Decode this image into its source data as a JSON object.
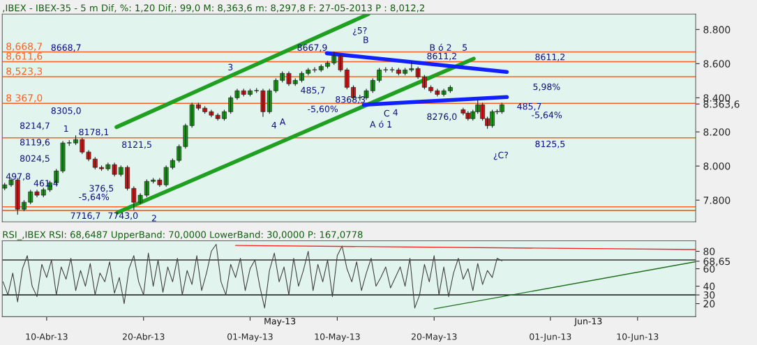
{
  "chart_data": [
    {
      "type": "candlestick",
      "title": ",IBEX - IBEX-35 - 5 m Dif, %: 1,20 Dif,: 99,0 M: 8,363,6 m: 8,297,8 F: 27-05-2013 P : 8,012,2",
      "x": [
        "2013-04-05T16:00",
        "2013-04-06T08:00",
        "2013-04-07T00:00",
        "2013-04-07T16:00",
        "2013-04-08T08:00",
        "2013-04-09T00:00",
        "2013-04-09T16:00",
        "2013-04-10T08:00",
        "2013-04-11T00:00",
        "2013-04-11T16:00",
        "2013-04-12T08:00",
        "2013-04-13T00:00",
        "2013-04-13T16:00",
        "2013-04-14T08:00",
        "2013-04-15T00:00",
        "2013-04-15T16:00",
        "2013-04-16T08:00",
        "2013-04-17T00:00",
        "2013-04-17T16:00",
        "2013-04-18T08:00",
        "2013-04-19T00:00",
        "2013-04-19T16:00",
        "2013-04-20T08:00",
        "2013-04-21T00:00",
        "2013-04-21T16:00",
        "2013-04-22T08:00",
        "2013-04-23T00:00",
        "2013-04-23T16:00",
        "2013-04-24T08:00",
        "2013-04-25T00:00",
        "2013-04-25T16:00",
        "2013-04-26T08:00",
        "2013-04-27T00:00",
        "2013-04-27T16:00",
        "2013-04-28T08:00",
        "2013-04-29T00:00",
        "2013-04-29T16:00",
        "2013-04-30T08:00",
        "2013-05-01T00:00",
        "2013-05-01T16:00",
        "2013-05-02T08:00",
        "2013-05-03T00:00",
        "2013-05-03T16:00",
        "2013-05-04T08:00",
        "2013-05-05T00:00",
        "2013-05-05T16:00",
        "2013-05-06T08:00",
        "2013-05-07T00:00",
        "2013-05-07T16:00",
        "2013-05-08T08:00",
        "2013-05-09T00:00",
        "2013-05-09T16:00",
        "2013-05-10T08:00",
        "2013-05-11T00:00",
        "2013-05-11T16:00",
        "2013-05-12T08:00",
        "2013-05-13T00:00",
        "2013-05-13T16:00",
        "2013-05-14T08:00",
        "2013-05-15T00:00",
        "2013-05-15T16:00",
        "2013-05-16T08:00",
        "2013-05-17T00:00",
        "2013-05-17T16:00",
        "2013-05-18T08:00",
        "2013-05-19T00:00",
        "2013-05-19T16:00",
        "2013-05-20T08:00",
        "2013-05-21T00:00",
        "2013-05-21T16:00",
        "2013-05-23T00:00",
        "2013-05-23T12:00",
        "2013-05-24T00:00",
        "2013-05-24T12:00",
        "2013-05-25T00:00",
        "2013-05-25T12:00",
        "2013-05-26T00:00",
        "2013-05-26T12:00",
        "2013-05-27T00:00"
      ],
      "ohlc": [
        [
          7870,
          7900,
          7860,
          7890
        ],
        [
          7890,
          7928,
          7880,
          7918
        ],
        [
          7918,
          7928,
          7717,
          7747
        ],
        [
          7747,
          7798,
          7737,
          7788
        ],
        [
          7788,
          7859,
          7778,
          7849
        ],
        [
          7849,
          7859,
          7819,
          7829
        ],
        [
          7829,
          7871,
          7819,
          7861
        ],
        [
          7861,
          7912,
          7851,
          7902
        ],
        [
          7902,
          7981,
          7892,
          7971
        ],
        [
          7971,
          8145,
          7961,
          8135
        ],
        [
          8135,
          8150,
          8120,
          8135
        ],
        [
          8135,
          8178,
          8125,
          8155
        ],
        [
          8155,
          8165,
          8072,
          8082
        ],
        [
          8082,
          8092,
          8031,
          8041
        ],
        [
          8041,
          8051,
          7982,
          7992
        ],
        [
          7992,
          8002,
          7974,
          7984
        ],
        [
          7984,
          8018,
          7974,
          8008
        ],
        [
          8008,
          8018,
          7941,
          7951
        ],
        [
          7951,
          8002,
          7941,
          7992
        ],
        [
          7992,
          8002,
          7859,
          7869
        ],
        [
          7869,
          7879,
          7743,
          7788
        ],
        [
          7788,
          7839,
          7778,
          7829
        ],
        [
          7829,
          7920,
          7819,
          7910
        ],
        [
          7910,
          7928,
          7900,
          7918
        ],
        [
          7918,
          7928,
          7880,
          7890
        ],
        [
          7890,
          8002,
          7880,
          7992
        ],
        [
          7992,
          8043,
          7982,
          8033
        ],
        [
          8033,
          8124,
          8023,
          8114
        ],
        [
          8114,
          8247,
          8104,
          8237
        ],
        [
          8237,
          8369,
          8227,
          8359
        ],
        [
          8359,
          8369,
          8329,
          8339
        ],
        [
          8339,
          8349,
          8308,
          8318
        ],
        [
          8318,
          8328,
          8288,
          8298
        ],
        [
          8298,
          8308,
          8268,
          8278
        ],
        [
          8278,
          8328,
          8268,
          8318
        ],
        [
          8318,
          8410,
          8308,
          8400
        ],
        [
          8400,
          8451,
          8390,
          8441
        ],
        [
          8441,
          8451,
          8410,
          8420
        ],
        [
          8420,
          8451,
          8410,
          8441
        ],
        [
          8441,
          8455,
          8430,
          8441
        ],
        [
          8441,
          8451,
          8290,
          8318
        ],
        [
          8318,
          8451,
          8308,
          8441
        ],
        [
          8441,
          8512,
          8431,
          8502
        ],
        [
          8502,
          8553,
          8492,
          8543
        ],
        [
          8543,
          8553,
          8472,
          8482
        ],
        [
          8482,
          8512,
          8472,
          8502
        ],
        [
          8502,
          8553,
          8492,
          8543
        ],
        [
          8543,
          8573,
          8533,
          8563
        ],
        [
          8563,
          8578,
          8550,
          8563
        ],
        [
          8563,
          8594,
          8553,
          8584
        ],
        [
          8584,
          8614,
          8574,
          8604
        ],
        [
          8604,
          8668,
          8594,
          8645
        ],
        [
          8645,
          8655,
          8553,
          8563
        ],
        [
          8563,
          8573,
          8451,
          8461
        ],
        [
          8461,
          8471,
          8390,
          8400
        ],
        [
          8400,
          8415,
          8385,
          8400
        ],
        [
          8400,
          8451,
          8390,
          8441
        ],
        [
          8441,
          8512,
          8431,
          8502
        ],
        [
          8502,
          8573,
          8492,
          8563
        ],
        [
          8563,
          8578,
          8550,
          8563
        ],
        [
          8563,
          8578,
          8550,
          8563
        ],
        [
          8563,
          8573,
          8533,
          8543
        ],
        [
          8543,
          8573,
          8533,
          8563
        ],
        [
          8563,
          8611,
          8553,
          8571
        ],
        [
          8571,
          8581,
          8512,
          8522
        ],
        [
          8522,
          8532,
          8451,
          8461
        ],
        [
          8461,
          8471,
          8431,
          8441
        ],
        [
          8441,
          8451,
          8410,
          8420
        ],
        [
          8420,
          8451,
          8410,
          8441
        ],
        [
          8441,
          8471,
          8431,
          8461
        ],
        [
          8330,
          8340,
          8300,
          8310
        ],
        [
          8310,
          8320,
          8268,
          8278
        ],
        [
          8278,
          8328,
          8268,
          8318
        ],
        [
          8318,
          8386,
          8308,
          8359
        ],
        [
          8359,
          8369,
          8268,
          8278
        ],
        [
          8278,
          8288,
          8220,
          8237
        ],
        [
          8237,
          8328,
          8227,
          8318
        ],
        [
          8318,
          8330,
          8305,
          8318
        ],
        [
          8318,
          8369,
          8308,
          8359
        ]
      ],
      "series": [
        {
          "type": "line",
          "color": "#20a020",
          "x": [
            "2013-04-17T05:00",
            "2013-05-13T05:00"
          ],
          "values": [
            8228,
            8890
          ]
        },
        {
          "type": "line",
          "color": "#20a020",
          "x": [
            "2013-04-17T07:00",
            "2013-05-24T02:00"
          ],
          "values": [
            7727,
            8629
          ]
        },
        {
          "type": "line",
          "color": "#1020ff",
          "x": [
            "2013-05-08T22:00",
            "2013-05-27T12:00"
          ],
          "values": [
            8661,
            8551
          ]
        },
        {
          "type": "line",
          "color": "#1020ff",
          "x": [
            "2013-05-12T18:00",
            "2013-05-27T12:00"
          ],
          "values": [
            8359,
            8404
          ]
        }
      ],
      "xlim": [
        "2013-04-05T10:00",
        "2013-06-16T00:00"
      ],
      "ylim": [
        7673,
        8890
      ],
      "yticks": [
        {
          "value": 8800,
          "label": "8.800"
        },
        {
          "value": 8600,
          "label": "8.600"
        },
        {
          "value": 8400,
          "label": "8.400"
        },
        {
          "value": 8200,
          "label": "8.200"
        },
        {
          "value": 8000,
          "label": "8.000"
        },
        {
          "value": 7800,
          "label": "7.800"
        },
        {
          "value": 8363.6,
          "label": "8.363,6"
        }
      ],
      "tick_labels": "y",
      "ref_lines": [
        {
          "axis": "y",
          "value": 8668.7,
          "label": "8,668,7",
          "color": "#ff6020"
        },
        {
          "axis": "y",
          "value": 8611.6,
          "label": "8,611,6",
          "color": "#ff6020"
        },
        {
          "axis": "y",
          "value": 8523.3,
          "label": "8,523,3",
          "color": "#ff6020"
        },
        {
          "axis": "y",
          "value": 8367.0,
          "label": "8 367,0",
          "color": "#ff6020"
        },
        {
          "axis": "y",
          "value": 8165,
          "color": "#ff6020"
        },
        {
          "axis": "y",
          "value": 7761,
          "color": "#ff6020"
        },
        {
          "axis": "y",
          "value": 7740,
          "color": "#ff6020"
        }
      ],
      "annotations": [
        "8668,7",
        "8305,0",
        "8214,7",
        "8119,6",
        "8024,5",
        "8178,1",
        "8121,5",
        "7743,0",
        "7716,7",
        "497,8",
        "461,4",
        "376,5",
        "-5,64%",
        "1",
        "2",
        "3",
        "4",
        "A",
        "¿5?",
        "B",
        "8667,9",
        "485,7",
        "-5,60%",
        "8368,3",
        "A ó 1",
        "C",
        "4",
        "B ó 2",
        "5",
        "8611,2",
        "8276,0",
        "485,7",
        "5,98%",
        "-5,64%",
        "8611,2",
        "8125,5",
        "¿C?"
      ]
    },
    {
      "type": "line",
      "title": "RSI_,IBEX RSI: 68,6487 UpperBand: 70,0000 LowerBand: 30,0000 P: 167,0778",
      "x": [
        "2013-04-05T12:00",
        "2013-04-06T00:00",
        "2013-04-06T12:00",
        "2013-04-07T00:00",
        "2013-04-07T12:00",
        "2013-04-08T00:00",
        "2013-04-08T12:00",
        "2013-04-09T00:00",
        "2013-04-09T12:00",
        "2013-04-10T00:00",
        "2013-04-10T12:00",
        "2013-04-11T00:00",
        "2013-04-11T12:00",
        "2013-04-12T00:00",
        "2013-04-12T12:00",
        "2013-04-13T00:00",
        "2013-04-13T12:00",
        "2013-04-14T00:00",
        "2013-04-14T12:00",
        "2013-04-15T00:00",
        "2013-04-15T12:00",
        "2013-04-16T00:00",
        "2013-04-16T12:00",
        "2013-04-17T00:00",
        "2013-04-17T12:00",
        "2013-04-18T00:00",
        "2013-04-18T12:00",
        "2013-04-19T00:00",
        "2013-04-19T12:00",
        "2013-04-20T00:00",
        "2013-04-20T12:00",
        "2013-04-21T00:00",
        "2013-04-21T12:00",
        "2013-04-22T00:00",
        "2013-04-22T12:00",
        "2013-04-23T00:00",
        "2013-04-23T12:00",
        "2013-04-24T00:00",
        "2013-04-24T12:00",
        "2013-04-25T00:00",
        "2013-04-25T12:00",
        "2013-04-26T00:00",
        "2013-04-26T12:00",
        "2013-04-27T00:00",
        "2013-04-27T12:00",
        "2013-04-28T00:00",
        "2013-04-28T12:00",
        "2013-04-29T00:00",
        "2013-04-29T12:00",
        "2013-04-30T00:00",
        "2013-04-30T12:00",
        "2013-05-01T00:00",
        "2013-05-01T12:00",
        "2013-05-02T00:00",
        "2013-05-02T12:00",
        "2013-05-03T00:00",
        "2013-05-03T12:00",
        "2013-05-04T00:00",
        "2013-05-04T12:00",
        "2013-05-05T00:00",
        "2013-05-05T12:00",
        "2013-05-06T00:00",
        "2013-05-06T12:00",
        "2013-05-07T00:00",
        "2013-05-07T12:00",
        "2013-05-08T00:00",
        "2013-05-08T12:00",
        "2013-05-09T00:00",
        "2013-05-09T12:00",
        "2013-05-10T00:00",
        "2013-05-10T12:00",
        "2013-05-11T00:00",
        "2013-05-11T12:00",
        "2013-05-12T00:00",
        "2013-05-12T12:00",
        "2013-05-13T00:00",
        "2013-05-13T12:00",
        "2013-05-14T00:00",
        "2013-05-14T12:00",
        "2013-05-15T00:00",
        "2013-05-15T12:00",
        "2013-05-16T00:00",
        "2013-05-16T12:00",
        "2013-05-17T00:00",
        "2013-05-17T12:00",
        "2013-05-18T00:00",
        "2013-05-18T12:00",
        "2013-05-19T00:00",
        "2013-05-19T12:00",
        "2013-05-20T00:00",
        "2013-05-20T12:00",
        "2013-05-21T00:00",
        "2013-05-21T12:00",
        "2013-05-22T00:00",
        "2013-05-22T12:00",
        "2013-05-23T00:00",
        "2013-05-23T12:00",
        "2013-05-24T00:00",
        "2013-05-24T12:00",
        "2013-05-25T00:00",
        "2013-05-25T12:00",
        "2013-05-26T00:00",
        "2013-05-26T12:00",
        "2013-05-27T00:00"
      ],
      "series": [
        {
          "color": "#404040",
          "values": [
            45,
            30,
            55,
            22,
            60,
            75,
            40,
            28,
            65,
            50,
            70,
            30,
            62,
            48,
            72,
            35,
            58,
            40,
            66,
            30,
            55,
            45,
            68,
            32,
            50,
            20,
            60,
            75,
            45,
            30,
            78,
            40,
            70,
            33,
            62,
            45,
            72,
            30,
            58,
            42,
            75,
            35,
            55,
            80,
            88,
            45,
            30,
            65,
            50,
            72,
            35,
            60,
            70,
            40,
            15,
            58,
            78,
            45,
            62,
            30,
            72,
            40,
            58,
            80,
            35,
            65,
            45,
            70,
            28,
            75,
            86,
            60,
            45,
            68,
            35,
            55,
            72,
            40,
            50,
            62,
            38,
            50,
            62,
            40,
            72,
            15,
            30,
            65,
            45,
            75,
            30,
            62,
            28,
            55,
            72,
            48,
            60,
            35,
            66,
            42,
            58,
            50,
            72,
            69
          ]
        },
        {
          "type": "line",
          "color": "#ff2020",
          "x": [
            "2013-04-29T12:00",
            "2013-06-16T00:00"
          ],
          "values": [
            86.7,
            82
          ]
        },
        {
          "type": "line",
          "color": "#207020",
          "x": [
            "2013-05-20T00:00",
            "2013-06-16T00:00"
          ],
          "values": [
            14,
            68
          ]
        }
      ],
      "xlim": [
        "2013-04-05T10:00",
        "2013-06-16T00:00"
      ],
      "ylim": [
        5,
        92
      ],
      "xticks": [
        {
          "value": "2013-04-10",
          "label": "10-Abr-13"
        },
        {
          "value": "2013-04-20",
          "label": "20-Abr-13"
        },
        {
          "value": "2013-05-01",
          "label": "01-May-13"
        },
        {
          "value": "2013-05-10",
          "label": "10-May-13"
        },
        {
          "value": "2013-05-20",
          "label": "20-May-13"
        },
        {
          "value": "2013-06-01",
          "label": "01-Jun-13"
        },
        {
          "value": "2013-06-10",
          "label": "10-Jun-13"
        }
      ],
      "yticks": [
        20,
        40,
        60,
        80,
        {
          "value": 68.65,
          "label": "68,65"
        },
        {
          "value": 30,
          "label": "30"
        }
      ],
      "ref_lines": [
        {
          "axis": "y",
          "value": 70,
          "color": "#303030"
        },
        {
          "axis": "y",
          "value": 30,
          "color": "#303030"
        }
      ],
      "annotations": [
        "May-13",
        "Jun-13"
      ]
    }
  ]
}
